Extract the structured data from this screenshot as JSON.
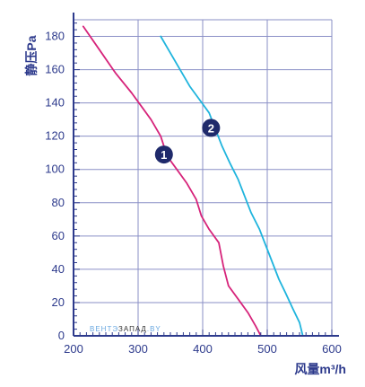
{
  "chart_data": {
    "type": "line",
    "title": "",
    "xlabel": "风量m³/h",
    "ylabel": "静压Pa",
    "xlim": [
      200,
      600
    ],
    "ylim": [
      0,
      190
    ],
    "xticks": [
      200,
      300,
      400,
      500,
      600
    ],
    "yticks": [
      0,
      20,
      40,
      60,
      80,
      100,
      120,
      140,
      160,
      180
    ],
    "grid": true,
    "series": [
      {
        "name": "1",
        "color": "#d6237a",
        "points": [
          {
            "x": 215,
            "y": 186
          },
          {
            "x": 240,
            "y": 172
          },
          {
            "x": 265,
            "y": 158
          },
          {
            "x": 290,
            "y": 146
          },
          {
            "x": 305,
            "y": 138
          },
          {
            "x": 320,
            "y": 130
          },
          {
            "x": 335,
            "y": 120
          },
          {
            "x": 345,
            "y": 108
          },
          {
            "x": 360,
            "y": 100
          },
          {
            "x": 375,
            "y": 92
          },
          {
            "x": 390,
            "y": 82
          },
          {
            "x": 398,
            "y": 72
          },
          {
            "x": 410,
            "y": 64
          },
          {
            "x": 425,
            "y": 56
          },
          {
            "x": 432,
            "y": 42
          },
          {
            "x": 440,
            "y": 30
          },
          {
            "x": 455,
            "y": 22
          },
          {
            "x": 470,
            "y": 14
          },
          {
            "x": 482,
            "y": 6
          },
          {
            "x": 490,
            "y": 0
          }
        ],
        "marker_label": "1",
        "marker_at": {
          "x": 340,
          "y": 109
        }
      },
      {
        "name": "2",
        "color": "#1fb4dd",
        "points": [
          {
            "x": 335,
            "y": 180
          },
          {
            "x": 350,
            "y": 170
          },
          {
            "x": 365,
            "y": 160
          },
          {
            "x": 380,
            "y": 150
          },
          {
            "x": 395,
            "y": 142
          },
          {
            "x": 410,
            "y": 134
          },
          {
            "x": 420,
            "y": 124
          },
          {
            "x": 430,
            "y": 114
          },
          {
            "x": 442,
            "y": 104
          },
          {
            "x": 455,
            "y": 94
          },
          {
            "x": 465,
            "y": 84
          },
          {
            "x": 475,
            "y": 74
          },
          {
            "x": 488,
            "y": 64
          },
          {
            "x": 498,
            "y": 54
          },
          {
            "x": 508,
            "y": 44
          },
          {
            "x": 518,
            "y": 34
          },
          {
            "x": 528,
            "y": 26
          },
          {
            "x": 540,
            "y": 16
          },
          {
            "x": 550,
            "y": 8
          },
          {
            "x": 555,
            "y": 0
          }
        ],
        "marker_label": "2",
        "marker_at": {
          "x": 413,
          "y": 125
        }
      }
    ]
  },
  "watermark": {
    "part1": "ВЕНТЭ",
    "part2": "ЗАПАД",
    "part3": ".BY",
    "color1": "#6aa8e0",
    "color2": "#333333"
  },
  "colors": {
    "axis": "#2d3a8c",
    "grid": "#8a8fc6",
    "marker_fill": "#1f2a6b"
  }
}
